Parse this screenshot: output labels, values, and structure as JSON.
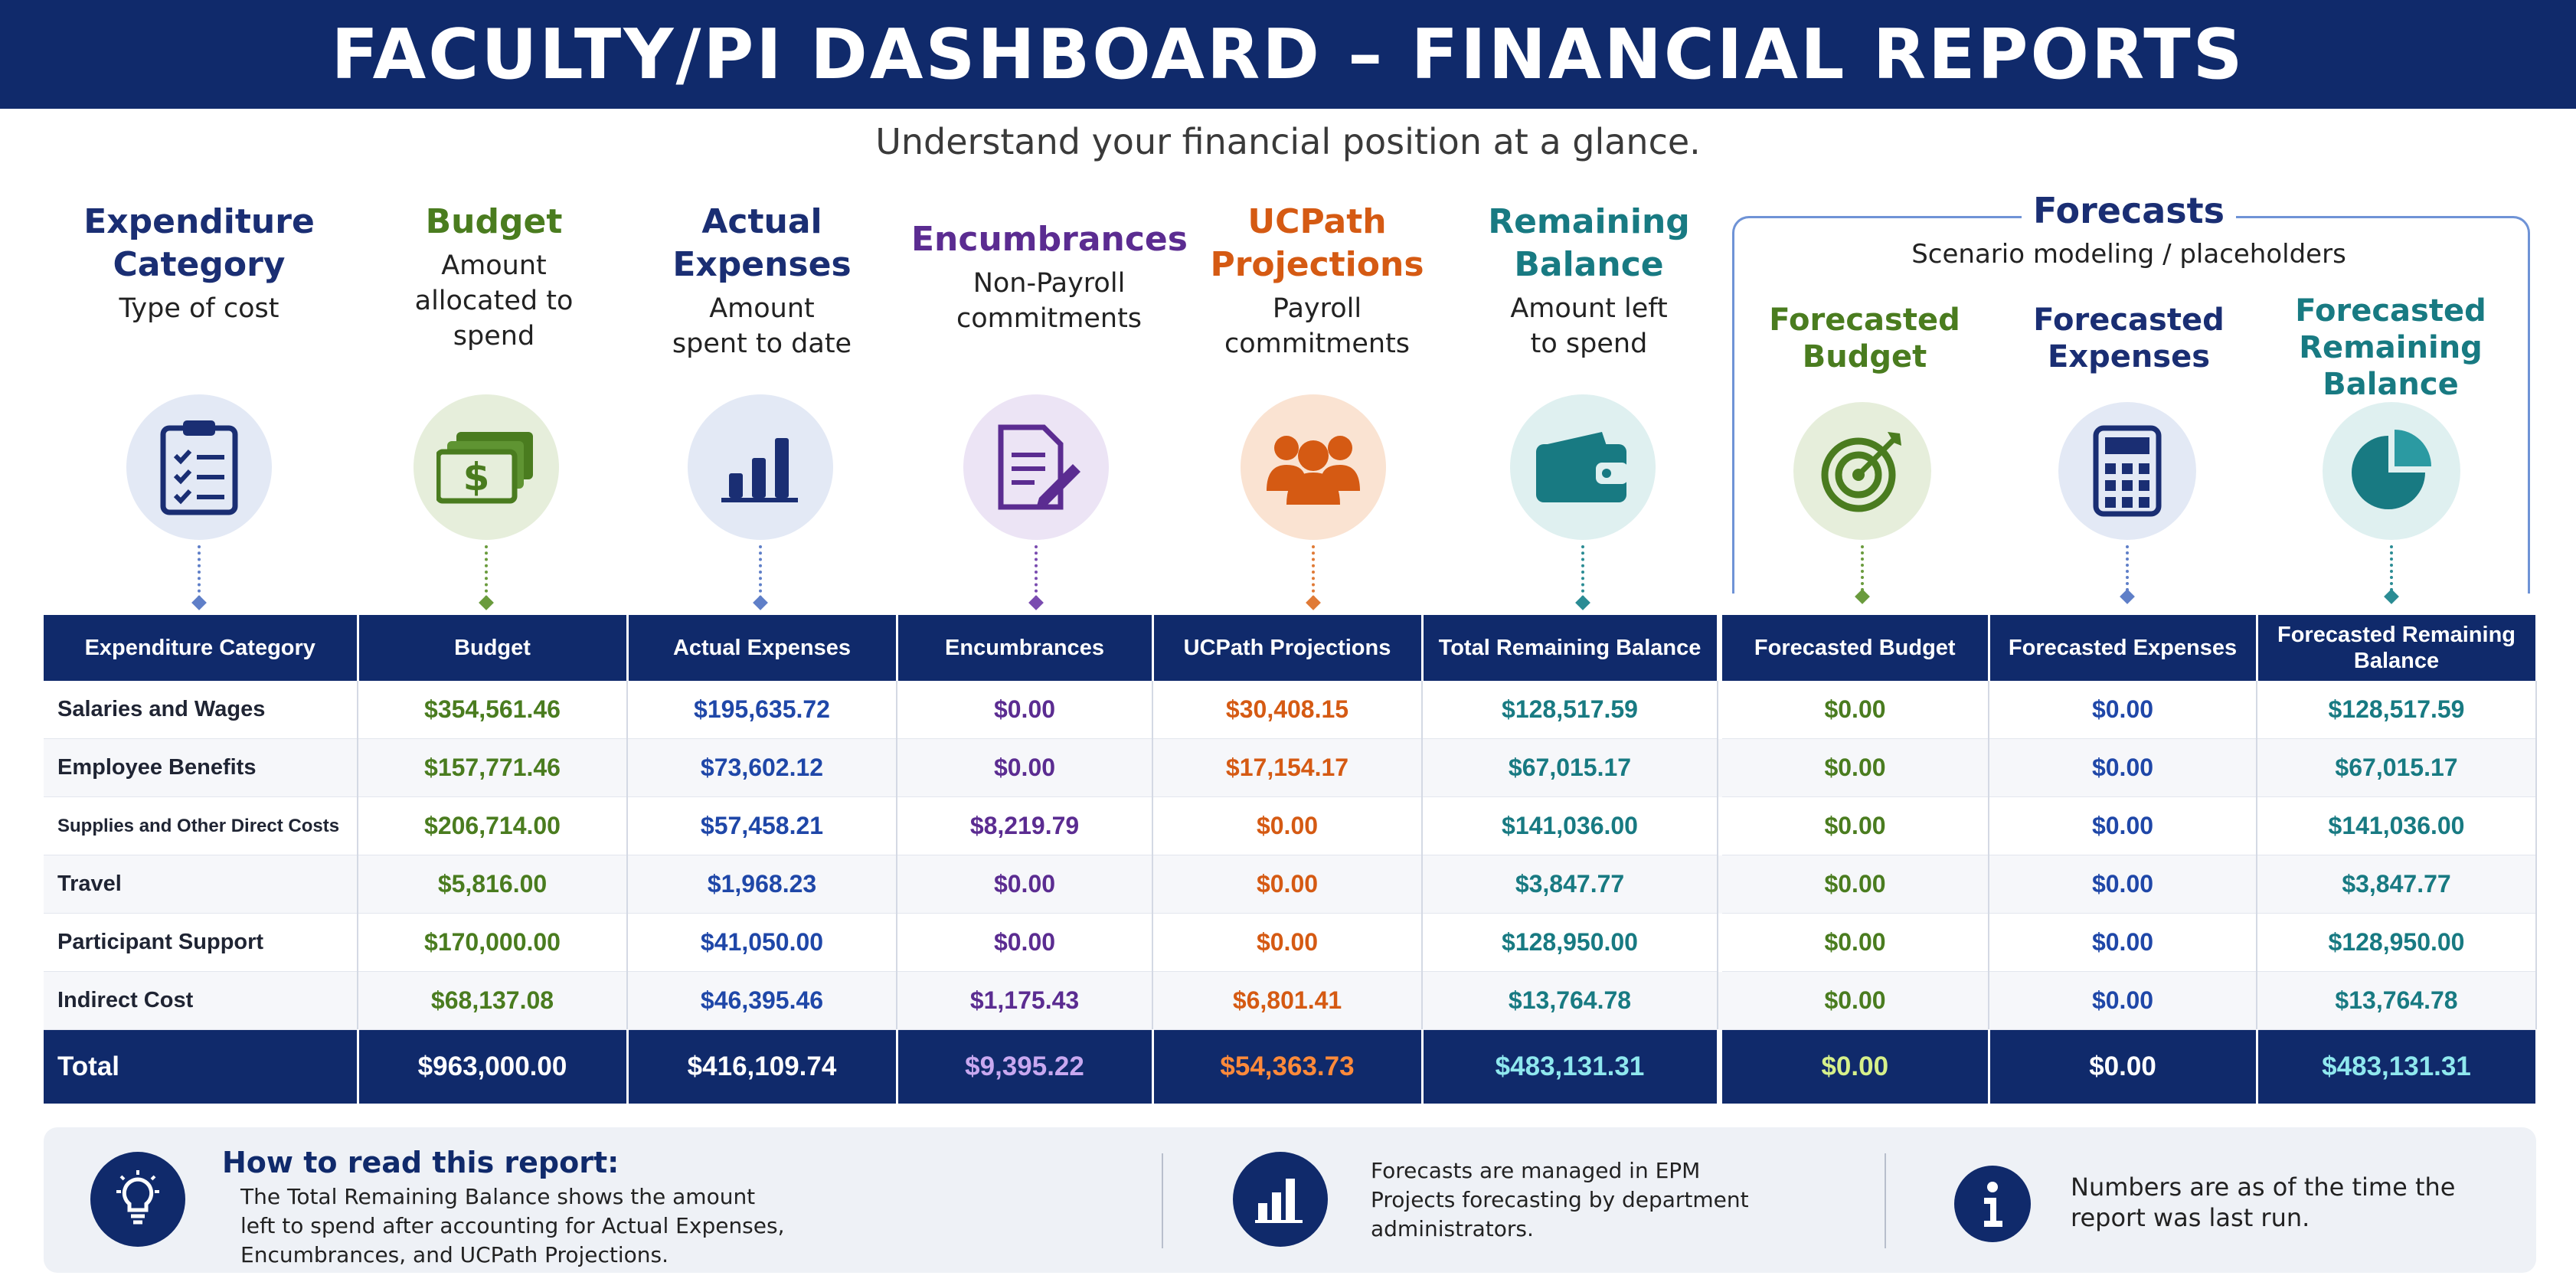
{
  "header": {
    "title": "FACULTY/PI DASHBOARD – FINANCIAL REPORTS",
    "subtitle": "Understand your financial position at a glance."
  },
  "columns": [
    {
      "title_lines": [
        "Expenditure",
        "Category"
      ],
      "desc_lines": [
        "Type of cost"
      ],
      "icon": "clipboard-checklist-icon",
      "color": "#1a2e73"
    },
    {
      "title_lines": [
        "Budget"
      ],
      "desc_lines": [
        "Amount",
        "allocated to",
        "spend"
      ],
      "icon": "money-stack-icon",
      "color": "#4a7c1f"
    },
    {
      "title_lines": [
        "Actual",
        "Expenses"
      ],
      "desc_lines": [
        "Amount",
        "spent to date"
      ],
      "icon": "bar-chart-icon",
      "color": "#1a2e73"
    },
    {
      "title_lines": [
        "Encumbrances"
      ],
      "desc_lines": [
        "Non-Payroll",
        "commitments"
      ],
      "icon": "document-pen-icon",
      "color": "#5b2c91"
    },
    {
      "title_lines": [
        "UCPath",
        "Projections"
      ],
      "desc_lines": [
        "Payroll",
        "commitments"
      ],
      "icon": "people-group-icon",
      "color": "#d55a13"
    },
    {
      "title_lines": [
        "Remaining",
        "Balance"
      ],
      "desc_lines": [
        "Amount left",
        "to spend"
      ],
      "icon": "wallet-icon",
      "color": "#187a82"
    }
  ],
  "forecasts": {
    "label": "Forecasts",
    "subtitle": "Scenario modeling / placeholders",
    "columns": [
      {
        "title_lines": [
          "Forecasted",
          "Budget"
        ],
        "icon": "target-icon",
        "color": "#4a7c1f"
      },
      {
        "title_lines": [
          "Forecasted",
          "Expenses"
        ],
        "icon": "calculator-icon",
        "color": "#1a2e73"
      },
      {
        "title_lines": [
          "Forecasted",
          "Remaining",
          "Balance"
        ],
        "icon": "pie-chart-icon",
        "color": "#187a82"
      }
    ]
  },
  "table": {
    "headers": [
      "Expenditure Category",
      "Budget",
      "Actual Expenses",
      "Encumbrances",
      "UCPath Projections",
      "Total Remaining Balance",
      "Forecasted Budget",
      "Forecasted Expenses",
      "Forecasted Remaining Balance"
    ],
    "rows": [
      {
        "category": "Salaries and Wages",
        "values": [
          "$354,561.46",
          "$195,635.72",
          "$0.00",
          "$30,408.15",
          "$128,517.59",
          "$0.00",
          "$0.00",
          "$128,517.59"
        ]
      },
      {
        "category": "Employee Benefits",
        "values": [
          "$157,771.46",
          "$73,602.12",
          "$0.00",
          "$17,154.17",
          "$67,015.17",
          "$0.00",
          "$0.00",
          "$67,015.17"
        ]
      },
      {
        "category": "Supplies and Other Direct Costs",
        "values": [
          "$206,714.00",
          "$57,458.21",
          "$8,219.79",
          "$0.00",
          "$141,036.00",
          "$0.00",
          "$0.00",
          "$141,036.00"
        ]
      },
      {
        "category": "Travel",
        "values": [
          "$5,816.00",
          "$1,968.23",
          "$0.00",
          "$0.00",
          "$3,847.77",
          "$0.00",
          "$0.00",
          "$3,847.77"
        ]
      },
      {
        "category": "Participant Support",
        "values": [
          "$170,000.00",
          "$41,050.00",
          "$0.00",
          "$0.00",
          "$128,950.00",
          "$0.00",
          "$0.00",
          "$128,950.00"
        ]
      },
      {
        "category": "Indirect Cost",
        "values": [
          "$68,137.08",
          "$46,395.46",
          "$1,175.43",
          "$6,801.41",
          "$13,764.78",
          "$0.00",
          "$0.00",
          "$13,764.78"
        ]
      }
    ],
    "total": {
      "category": "Total",
      "values": [
        "$963,000.00",
        "$416,109.74",
        "$9,395.22",
        "$54,363.73",
        "$483,131.31",
        "$0.00",
        "$0.00",
        "$483,131.31"
      ]
    },
    "total_colors": [
      "#ffffff",
      "#ffffff",
      "#c8a8f0",
      "#ff8a3a",
      "#8fe8ee",
      "#d6f08a",
      "#ffffff",
      "#8fe8ee"
    ]
  },
  "info": {
    "how_title": "How to read this report:",
    "how_text_lines": [
      "The Total Remaining Balance shows the amount",
      "left to spend after accounting for Actual Expenses,",
      "Encumbrances, and UCPath Projections."
    ],
    "forecast_text_lines": [
      "Forecasts are managed in EPM",
      "Projects forecasting by department",
      "administrators."
    ],
    "timing_text_lines": [
      "Numbers are as of the time the",
      "report was last run."
    ],
    "icons": [
      "lightbulb-icon",
      "bar-chart-icon",
      "info-icon"
    ]
  }
}
